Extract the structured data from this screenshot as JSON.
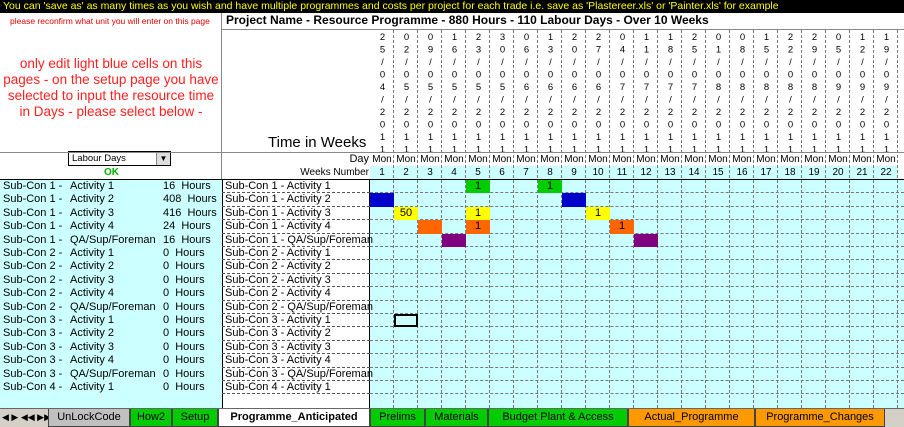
{
  "banner": "You can 'save as' as many times as you wish and have multiple programmes and costs per project for each trade i.e. save as 'Plastereer.xls' or 'Painter.xls' for example",
  "left_panel": {
    "note": "please reconfirm what unit you will enter on this page",
    "instructions": "only edit light blue cells on this pages - on the setup page you have selected to input the resource time in Days - please select below -",
    "unit_dropdown": "Labour Days",
    "status": "OK"
  },
  "header": {
    "title": "Project Name - Resource Programme  - 880 Hours - 110 Labour Days - Over 10 Weeks",
    "time_label": "Time in Weeks",
    "day_label": "Day",
    "weeks_label": "Weeks Number"
  },
  "columns": [
    {
      "date": "25/04/2011",
      "day": "Mon",
      "week": 1
    },
    {
      "date": "02/05/2011",
      "day": "Mon",
      "week": 2
    },
    {
      "date": "09/05/2011",
      "day": "Mon",
      "week": 3
    },
    {
      "date": "16/05/2011",
      "day": "Mon",
      "week": 4
    },
    {
      "date": "23/05/2011",
      "day": "Mon",
      "week": 5
    },
    {
      "date": "30/05/2011",
      "day": "Mon",
      "week": 6
    },
    {
      "date": "06/06/2011",
      "day": "Mon",
      "week": 7
    },
    {
      "date": "13/06/2011",
      "day": "Mon",
      "week": 8
    },
    {
      "date": "20/06/2011",
      "day": "Mon",
      "week": 9
    },
    {
      "date": "27/06/2011",
      "day": "Mon",
      "week": 10
    },
    {
      "date": "04/07/2011",
      "day": "Mon",
      "week": 11
    },
    {
      "date": "11/07/2011",
      "day": "Mon",
      "week": 12
    },
    {
      "date": "18/07/2011",
      "day": "Mon",
      "week": 13
    },
    {
      "date": "25/07/2011",
      "day": "Mon",
      "week": 14
    },
    {
      "date": "01/08/2011",
      "day": "Mon",
      "week": 15
    },
    {
      "date": "08/08/2011",
      "day": "Mon",
      "week": 16
    },
    {
      "date": "15/08/2011",
      "day": "Mon",
      "week": 17
    },
    {
      "date": "22/08/2011",
      "day": "Mon",
      "week": 18
    },
    {
      "date": "29/08/2011",
      "day": "Mon",
      "week": 19
    },
    {
      "date": "05/09/2011",
      "day": "Mon",
      "week": 20
    },
    {
      "date": "12/09/2011",
      "day": "Mon",
      "week": 21
    },
    {
      "date": "19/09/2011",
      "day": "Mon",
      "week": 22
    }
  ],
  "rows": [
    {
      "subcon": "Sub-Con 1 -",
      "activity": "Activity 1",
      "hours": "16  Hours",
      "task": "Sub-Con 1 - Activity 1",
      "marks": [
        {
          "week": 5,
          "color": "#00cc00",
          "label": "1"
        },
        {
          "week": 8,
          "color": "#00cc00",
          "label": "1"
        }
      ]
    },
    {
      "subcon": "Sub-Con 1 -",
      "activity": "Activity 2",
      "hours": "408  Hours",
      "task": "Sub-Con 1 - Activity 2",
      "marks": [
        {
          "week": 1,
          "color": "#0000cc"
        },
        {
          "week": 9,
          "color": "#0000cc"
        }
      ]
    },
    {
      "subcon": "Sub-Con 1 -",
      "activity": "Activity 3",
      "hours": "416  Hours",
      "task": "Sub-Con 1 - Activity 3",
      "marks": [
        {
          "week": 2,
          "color": "#ffff00",
          "label": "50"
        },
        {
          "week": 5,
          "color": "#ffff00",
          "label": "1"
        },
        {
          "week": 10,
          "color": "#ffff00",
          "label": "1"
        }
      ]
    },
    {
      "subcon": "Sub-Con 1 -",
      "activity": "Activity 4",
      "hours": "24  Hours",
      "task": "Sub-Con 1 - Activity 4",
      "marks": [
        {
          "week": 3,
          "color": "#ff6600"
        },
        {
          "week": 5,
          "color": "#ff6600",
          "label": "1"
        },
        {
          "week": 11,
          "color": "#ff6600",
          "label": "1"
        }
      ]
    },
    {
      "subcon": "Sub-Con 1 -",
      "activity": "QA/Sup/Foreman",
      "hours": "16  Hours",
      "task": "Sub-Con 1 - QA/Sup/Foreman",
      "marks": [
        {
          "week": 4,
          "color": "#800080"
        },
        {
          "week": 12,
          "color": "#800080"
        }
      ]
    },
    {
      "subcon": "Sub-Con 2 -",
      "activity": "Activity 1",
      "hours": "0  Hours",
      "task": "Sub-Con 2 - Activity 1"
    },
    {
      "subcon": "Sub-Con 2 -",
      "activity": "Activity 2",
      "hours": "0  Hours",
      "task": "Sub-Con 2 - Activity 2"
    },
    {
      "subcon": "Sub-Con 2 -",
      "activity": "Activity 3",
      "hours": "0  Hours",
      "task": "Sub-Con 2 - Activity 3"
    },
    {
      "subcon": "Sub-Con 2 -",
      "activity": "Activity 4",
      "hours": "0  Hours",
      "task": "Sub-Con 2 - Activity 4"
    },
    {
      "subcon": "Sub-Con 2 -",
      "activity": "QA/Sup/Foreman",
      "hours": "0  Hours",
      "task": "Sub-Con 2 - QA/Sup/Foreman"
    },
    {
      "subcon": "Sub-Con 3 -",
      "activity": "Activity 1",
      "hours": "0  Hours",
      "task": "Sub-Con 3 - Activity 1"
    },
    {
      "subcon": "Sub-Con 3 -",
      "activity": "Activity 2",
      "hours": "0  Hours",
      "task": "Sub-Con 3 - Activity 2"
    },
    {
      "subcon": "Sub-Con 3 -",
      "activity": "Activity 3",
      "hours": "0  Hours",
      "task": "Sub-Con 3 - Activity 3"
    },
    {
      "subcon": "Sub-Con 3 -",
      "activity": "Activity 4",
      "hours": "0  Hours",
      "task": "Sub-Con 3 - Activity 4"
    },
    {
      "subcon": "Sub-Con 3 -",
      "activity": "QA/Sup/Foreman",
      "hours": "0  Hours",
      "task": "Sub-Con 3 - QA/Sup/Foreman"
    },
    {
      "subcon": "Sub-Con 4 -",
      "activity": "Activity 1",
      "hours": "0  Hours",
      "task": "Sub-Con 4 - Activity 1"
    }
  ],
  "tabs": [
    {
      "label": "UnLockCode",
      "color": "#c0c0c0"
    },
    {
      "label": "How2",
      "color": "#00cc00"
    },
    {
      "label": "Setup",
      "color": "#00cc00"
    },
    {
      "label": "Programme_Anticipated",
      "color": "#ffffff"
    },
    {
      "label": "Prelims",
      "color": "#00cc00"
    },
    {
      "label": "Materials",
      "color": "#00cc00"
    },
    {
      "label": "Budget Plant & Access",
      "color": "#00cc00"
    },
    {
      "label": "Actual_Programme",
      "color": "#ff9900"
    },
    {
      "label": "Programme_Changes",
      "color": "#ff9900"
    }
  ]
}
